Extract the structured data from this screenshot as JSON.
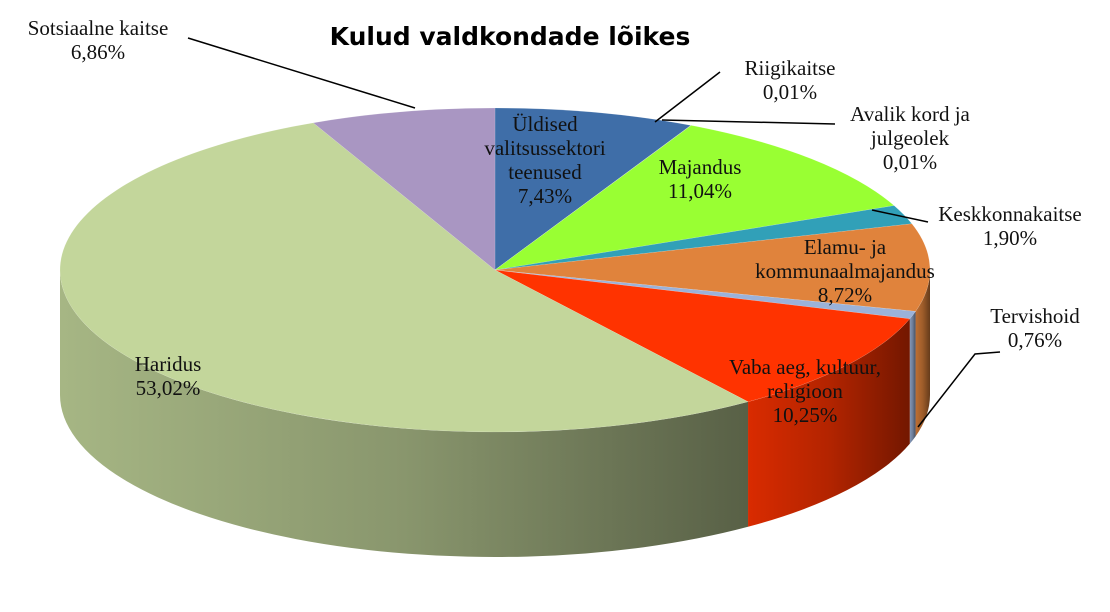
{
  "chart_data": {
    "type": "pie",
    "title": "Kulud valdkondade lõikes",
    "categories": [
      "Üldised valitsussektori teenused",
      "Riigikaitse",
      "Avalik kord ja julgeolek",
      "Majandus",
      "Keskkonnakaitse",
      "Elamu- ja kommunaalmajandus",
      "Tervishoid",
      "Vaba aeg, kultuur, religioon",
      "Haridus",
      "Sotsiaalne kaitse"
    ],
    "values": [
      7.43,
      0.01,
      0.01,
      11.04,
      1.9,
      8.72,
      0.76,
      10.25,
      53.02,
      6.86
    ],
    "value_labels": [
      "7,43%",
      "0,01%",
      "0,01%",
      "11,04%",
      "1,90%",
      "8,72%",
      "0,76%",
      "10,25%",
      "53,02%",
      "6,86%"
    ],
    "colors": [
      "#3f6ea8",
      "#2f5a90",
      "#7fd12a",
      "#99ff33",
      "#31a0b8",
      "#e0833c",
      "#9bb2d9",
      "#ff3300",
      "#c3d69b",
      "#a996c2"
    ]
  }
}
